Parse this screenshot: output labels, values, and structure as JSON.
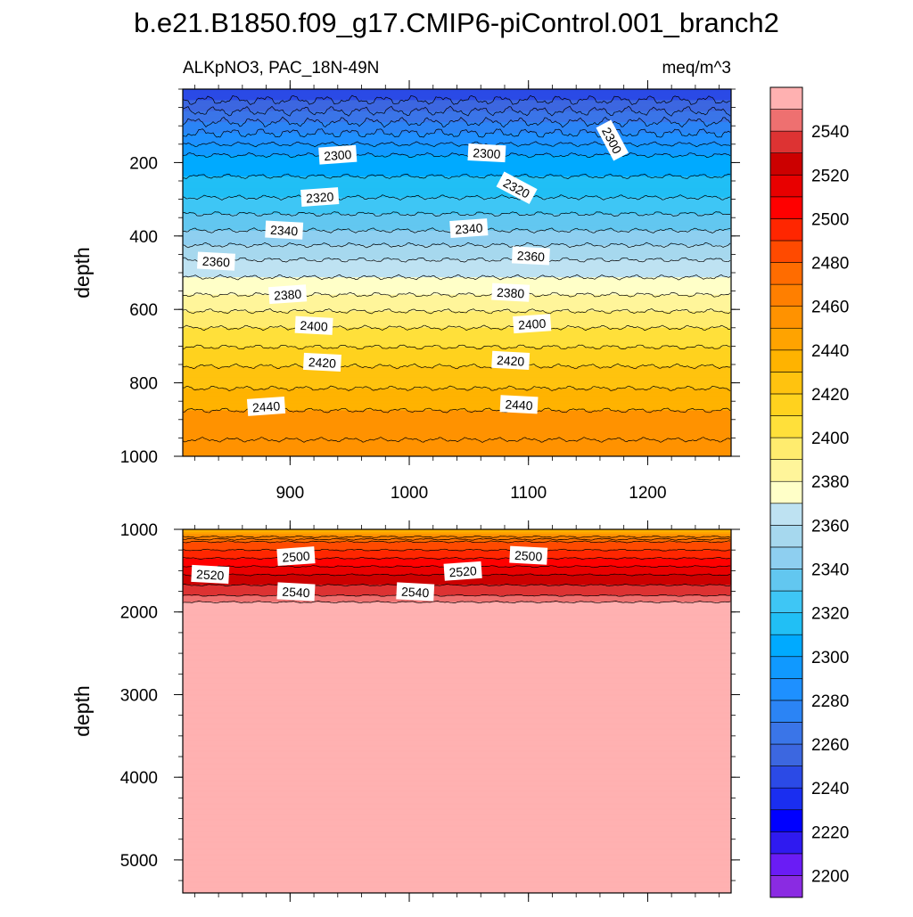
{
  "title": "b.e21.B1850.f09_g17.CMIP6-piControl.001_branch2",
  "subtitle_left": "ALKpNO3, PAC_18N-49N",
  "subtitle_right": "meq/m^3",
  "chart_data": {
    "type": "heatmap",
    "description_of_panels": "two-panel depth-time contour plot",
    "x": {
      "range": [
        810,
        1270
      ],
      "ticks": [
        900,
        1000,
        1100,
        1200
      ],
      "tick_labels": [
        "900",
        "1000",
        "1100",
        "1200"
      ]
    },
    "panels": [
      {
        "name": "upper",
        "ylabel": "depth",
        "ylim": [
          1000,
          0
        ],
        "y_ticks": [
          200,
          400,
          600,
          800,
          1000
        ],
        "y_tick_labels": [
          "200",
          "400",
          "600",
          "800",
          "1000"
        ],
        "contour_depths": [
          {
            "level": 2300,
            "depth": 180
          },
          {
            "level": 2320,
            "depth": 295
          },
          {
            "level": 2340,
            "depth": 385
          },
          {
            "level": 2360,
            "depth": 465
          },
          {
            "level": 2380,
            "depth": 560
          },
          {
            "level": 2400,
            "depth": 650
          },
          {
            "level": 2420,
            "depth": 755
          },
          {
            "level": 2440,
            "depth": 875
          }
        ],
        "contour_labels": [
          {
            "text": "2300",
            "x": 940,
            "depth": 180
          },
          {
            "text": "2300",
            "x": 1065,
            "depth": 175
          },
          {
            "text": "2300",
            "x": 1170,
            "depth": 140
          },
          {
            "text": "2320",
            "x": 925,
            "depth": 295
          },
          {
            "text": "2320",
            "x": 1090,
            "depth": 270
          },
          {
            "text": "2340",
            "x": 895,
            "depth": 385
          },
          {
            "text": "2340",
            "x": 1050,
            "depth": 380
          },
          {
            "text": "2360",
            "x": 838,
            "depth": 470
          },
          {
            "text": "2360",
            "x": 1102,
            "depth": 455
          },
          {
            "text": "2380",
            "x": 898,
            "depth": 560
          },
          {
            "text": "2380",
            "x": 1085,
            "depth": 555
          },
          {
            "text": "2400",
            "x": 920,
            "depth": 645
          },
          {
            "text": "2400",
            "x": 1103,
            "depth": 640
          },
          {
            "text": "2420",
            "x": 927,
            "depth": 745
          },
          {
            "text": "2420",
            "x": 1085,
            "depth": 740
          },
          {
            "text": "2440",
            "x": 880,
            "depth": 865
          },
          {
            "text": "2440",
            "x": 1092,
            "depth": 860
          }
        ]
      },
      {
        "name": "lower",
        "ylabel": "depth",
        "ylim": [
          5400,
          1000
        ],
        "y_ticks": [
          1000,
          2000,
          3000,
          4000,
          5000
        ],
        "y_tick_labels": [
          "1000",
          "2000",
          "3000",
          "4000",
          "5000"
        ],
        "contour_depths": [
          {
            "level": 2480,
            "depth": 1150
          },
          {
            "level": 2500,
            "depth": 1350
          },
          {
            "level": 2520,
            "depth": 1550
          },
          {
            "level": 2540,
            "depth": 1800
          },
          {
            "level": 2550,
            "depth": 1880
          }
        ],
        "contour_labels": [
          {
            "text": "2500",
            "x": 905,
            "depth": 1330
          },
          {
            "text": "2500",
            "x": 1100,
            "depth": 1320
          },
          {
            "text": "2520",
            "x": 833,
            "depth": 1550
          },
          {
            "text": "2520",
            "x": 1045,
            "depth": 1510
          },
          {
            "text": "2540",
            "x": 905,
            "depth": 1760
          },
          {
            "text": "2540",
            "x": 1005,
            "depth": 1760
          }
        ]
      }
    ],
    "colorbar": {
      "levels": [
        2200,
        2210,
        2220,
        2230,
        2240,
        2250,
        2260,
        2270,
        2280,
        2290,
        2300,
        2310,
        2320,
        2330,
        2340,
        2350,
        2360,
        2370,
        2380,
        2390,
        2400,
        2410,
        2420,
        2430,
        2440,
        2450,
        2460,
        2470,
        2480,
        2490,
        2500,
        2510,
        2520,
        2530,
        2540,
        2550
      ],
      "tick_labels": [
        "2200",
        "2220",
        "2240",
        "2260",
        "2280",
        "2300",
        "2320",
        "2340",
        "2360",
        "2380",
        "2400",
        "2420",
        "2440",
        "2460",
        "2480",
        "2500",
        "2520",
        "2540"
      ],
      "colors": [
        "#8a2be2",
        "#6a1cf5",
        "#2f1af0",
        "#0000ff",
        "#1a2ef0",
        "#2b4ae6",
        "#3c67e0",
        "#3a75e8",
        "#2b84f5",
        "#1e90ff",
        "#1099ff",
        "#00aaff",
        "#21bff5",
        "#3ec6f5",
        "#62c7f0",
        "#8ecff0",
        "#a6d8ee",
        "#bee2f2",
        "#ffffc8",
        "#fff59a",
        "#ffec6e",
        "#ffe03a",
        "#ffd21e",
        "#ffc30f",
        "#ffb300",
        "#ffa300",
        "#ff9200",
        "#ff7f00",
        "#ff6c00",
        "#ff4a00",
        "#ff2600",
        "#ff0000",
        "#e80000",
        "#cc0000",
        "#dd3333",
        "#ee7070",
        "#ffb1b1"
      ]
    }
  }
}
